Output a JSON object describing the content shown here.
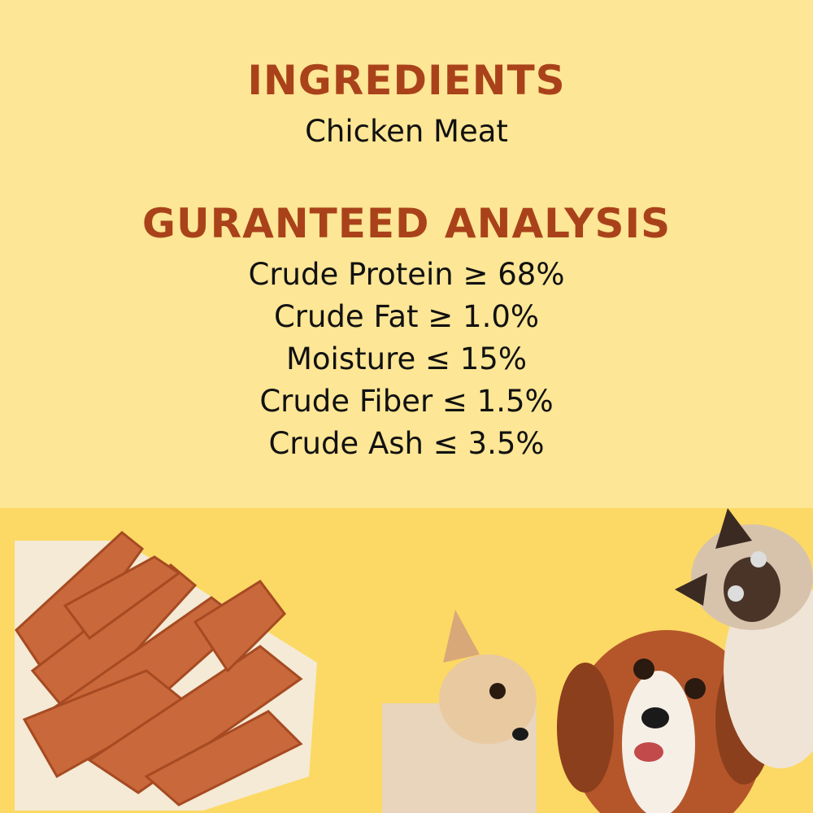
{
  "ingredients": {
    "heading": "INGREDIENTS",
    "text": "Chicken Meat"
  },
  "analysis": {
    "heading": "GURANTEED ANALYSIS",
    "items": [
      "Crude Protein ≥ 68%",
      "Crude Fat ≥ 1.0%",
      "Moisture ≤ 15%",
      "Crude Fiber ≤ 1.5%",
      "Crude Ash ≤ 3.5%"
    ]
  },
  "colors": {
    "heading": "#a9421a",
    "top_bg": "#fde695",
    "bottom_bg": "#fcd964"
  },
  "images": [
    "chicken-jerky-photo",
    "puppy-photo",
    "spaniel-dog-photo",
    "siamese-cat-photo"
  ]
}
